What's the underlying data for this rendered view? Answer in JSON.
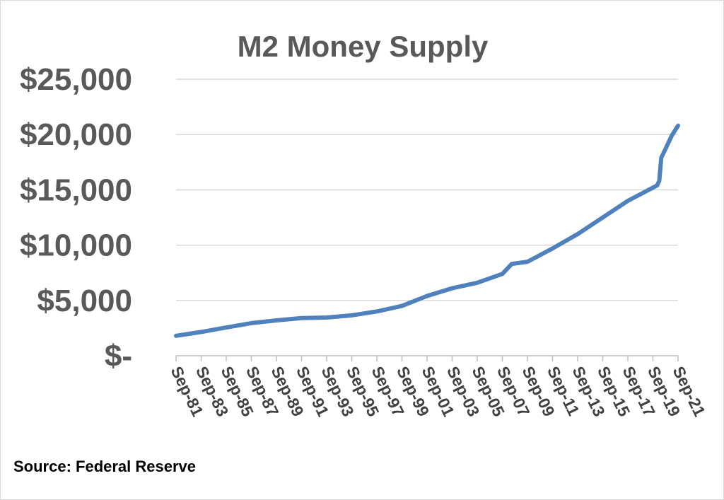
{
  "chart_data": {
    "type": "line",
    "title": "M2 Money Supply",
    "xlabel": "",
    "ylabel": "",
    "yticks": [
      "$-",
      "$5,000",
      "$10,000",
      "$15,000",
      "$20,000",
      "$25,000"
    ],
    "ylim": [
      0,
      25000
    ],
    "xticks": [
      "Sep-81",
      "Sep-83",
      "Sep-85",
      "Sep-87",
      "Sep-89",
      "Sep-91",
      "Sep-93",
      "Sep-95",
      "Sep-97",
      "Sep-99",
      "Sep-01",
      "Sep-03",
      "Sep-05",
      "Sep-07",
      "Sep-09",
      "Sep-11",
      "Sep-13",
      "Sep-15",
      "Sep-17",
      "Sep-19",
      "Sep-21"
    ],
    "xlim": [
      "1981-09",
      "2021-09"
    ],
    "grid": true,
    "legend": "none",
    "series": [
      {
        "color": "#4f81bd",
        "x": [
          "1981-09",
          "1983-09",
          "1985-09",
          "1987-09",
          "1989-09",
          "1991-09",
          "1993-09",
          "1995-09",
          "1997-09",
          "1999-09",
          "2001-09",
          "2003-09",
          "2005-09",
          "2007-09",
          "2008-06",
          "2009-09",
          "2011-09",
          "2013-09",
          "2015-09",
          "2017-09",
          "2019-09",
          "2020-01",
          "2020-03",
          "2020-05",
          "2020-09",
          "2021-03",
          "2021-09"
        ],
        "values": [
          1800,
          2150,
          2550,
          2950,
          3200,
          3400,
          3450,
          3650,
          4000,
          4500,
          5400,
          6100,
          6600,
          7400,
          8300,
          8500,
          9700,
          11000,
          12500,
          14000,
          15200,
          15400,
          15800,
          17900,
          18700,
          19900,
          20800
        ]
      }
    ]
  },
  "source": "Source: Federal Reserve"
}
